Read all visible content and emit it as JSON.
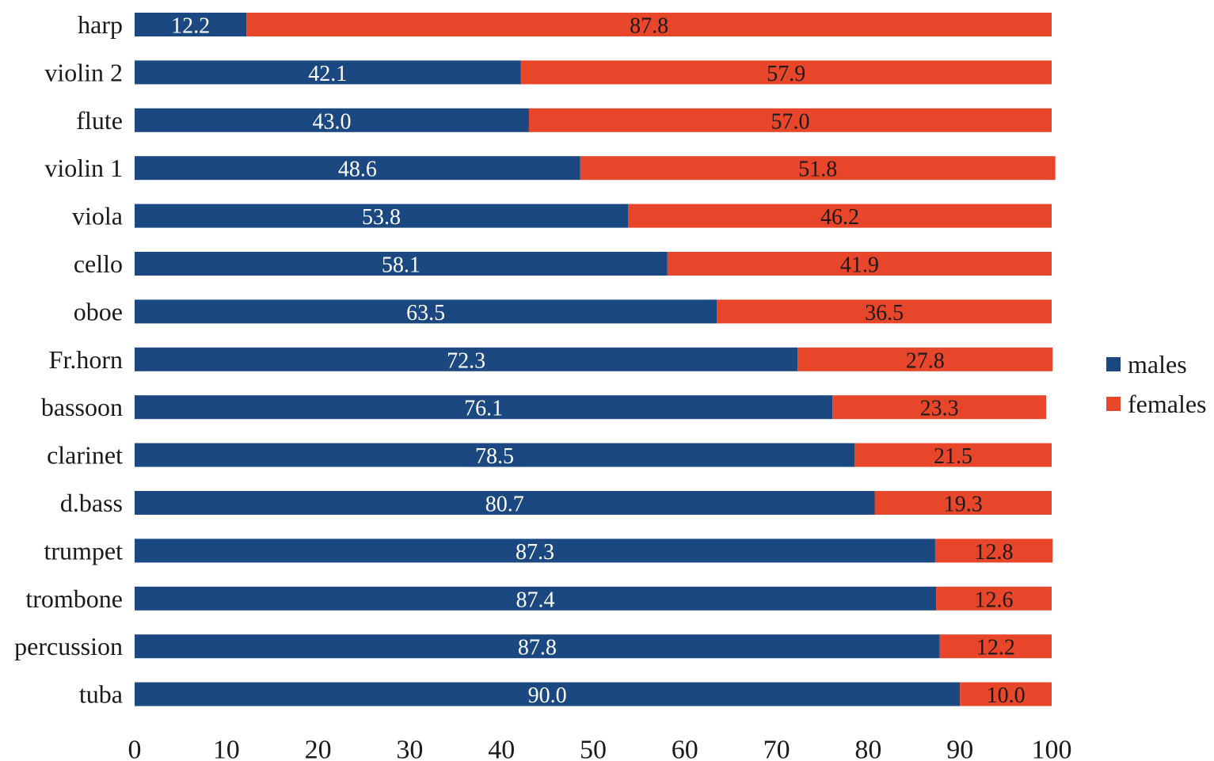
{
  "chart_data": {
    "type": "bar",
    "orientation": "horizontal",
    "stacked": true,
    "categories": [
      "harp",
      "violin 2",
      "flute",
      "violin 1",
      "viola",
      "cello",
      "oboe",
      "Fr.horn",
      "bassoon",
      "clarinet",
      "d.bass",
      "trumpet",
      "trombone",
      "percussion",
      "tuba"
    ],
    "series": [
      {
        "name": "males",
        "color": "#1b4880",
        "label_color": "#ffffff",
        "values": [
          12.2,
          42.1,
          43.0,
          48.6,
          53.8,
          58.1,
          63.5,
          72.3,
          76.1,
          78.5,
          80.7,
          87.3,
          87.4,
          87.8,
          90.0
        ]
      },
      {
        "name": "females",
        "color": "#e8462b",
        "label_color": "#1a1a1a",
        "values": [
          87.8,
          57.9,
          57.0,
          51.8,
          46.2,
          41.9,
          36.5,
          27.8,
          23.3,
          21.5,
          19.3,
          12.8,
          12.6,
          12.2,
          10.0
        ]
      }
    ],
    "x_ticks": [
      "0",
      "10",
      "20",
      "30",
      "40",
      "50",
      "60",
      "70",
      "80",
      "90",
      "100"
    ],
    "xlim": [
      0,
      100
    ],
    "grid": false,
    "legend_position": "right",
    "title": "",
    "xlabel": "",
    "ylabel": ""
  }
}
